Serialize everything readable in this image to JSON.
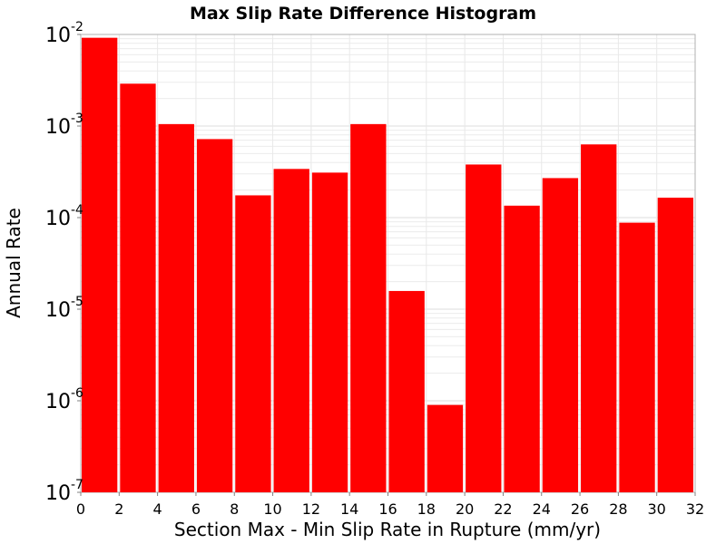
{
  "chart_data": {
    "type": "bar",
    "title": "Max Slip Rate Difference Histogram",
    "xlabel": "Section Max - Min Slip Rate in Rupture (mm/yr)",
    "ylabel": "Annual Rate",
    "x_ticks": [
      "0",
      "2",
      "4",
      "6",
      "8",
      "10",
      "12",
      "14",
      "16",
      "18",
      "20",
      "22",
      "24",
      "26",
      "28",
      "30",
      "32"
    ],
    "y_ticks": [
      {
        "base": "10",
        "exp": "-7",
        "value": 1e-07
      },
      {
        "base": "10",
        "exp": "-6",
        "value": 1e-06
      },
      {
        "base": "10",
        "exp": "-5",
        "value": 1e-05
      },
      {
        "base": "10",
        "exp": "-4",
        "value": 0.0001
      },
      {
        "base": "10",
        "exp": "-3",
        "value": 0.001
      },
      {
        "base": "10",
        "exp": "-2",
        "value": 0.01
      }
    ],
    "xlim": [
      0,
      32
    ],
    "ylim": [
      1e-07,
      0.01
    ],
    "y_scale": "log",
    "grid": true,
    "bar_color": "#ff0000",
    "bins": [
      {
        "x0": 0,
        "x1": 2,
        "value": 0.0092
      },
      {
        "x0": 2,
        "x1": 4,
        "value": 0.0029
      },
      {
        "x0": 4,
        "x1": 6,
        "value": 0.00105
      },
      {
        "x0": 6,
        "x1": 8,
        "value": 0.00072
      },
      {
        "x0": 8,
        "x1": 10,
        "value": 0.000175
      },
      {
        "x0": 10,
        "x1": 12,
        "value": 0.00034
      },
      {
        "x0": 12,
        "x1": 14,
        "value": 0.00031
      },
      {
        "x0": 14,
        "x1": 16,
        "value": 0.00105
      },
      {
        "x0": 16,
        "x1": 18,
        "value": 1.58e-05
      },
      {
        "x0": 18,
        "x1": 20,
        "value": 9e-07
      },
      {
        "x0": 20,
        "x1": 22,
        "value": 0.00038
      },
      {
        "x0": 22,
        "x1": 24,
        "value": 0.000135
      },
      {
        "x0": 24,
        "x1": 26,
        "value": 0.00027
      },
      {
        "x0": 26,
        "x1": 28,
        "value": 0.00063
      },
      {
        "x0": 28,
        "x1": 30,
        "value": 8.8e-05
      },
      {
        "x0": 30,
        "x1": 32,
        "value": 0.000165
      }
    ]
  }
}
